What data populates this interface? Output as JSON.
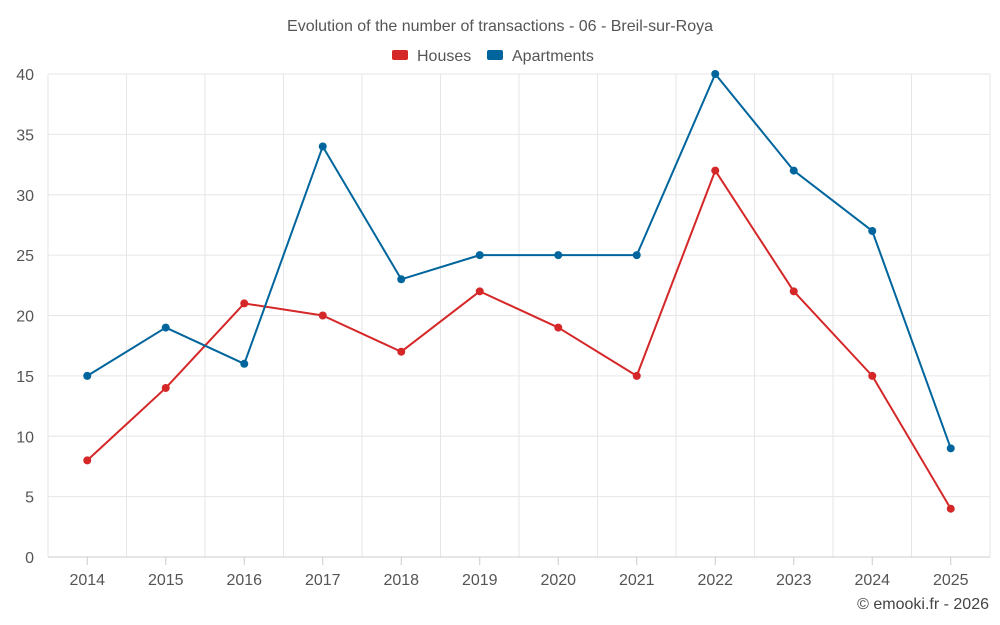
{
  "chart_data": {
    "type": "line",
    "title": "Evolution of the number of transactions - 06 - Breil-sur-Roya",
    "categories": [
      "2014",
      "2015",
      "2016",
      "2017",
      "2018",
      "2019",
      "2020",
      "2021",
      "2022",
      "2023",
      "2024",
      "2025"
    ],
    "series": [
      {
        "name": "Houses",
        "color": "#d62728",
        "values": [
          8,
          14,
          21,
          20,
          17,
          22,
          19,
          15,
          32,
          22,
          15,
          4
        ]
      },
      {
        "name": "Apartments",
        "color": "#00659c",
        "values": [
          15,
          19,
          16,
          34,
          23,
          25,
          25,
          25,
          40,
          32,
          27,
          9
        ]
      }
    ],
    "ylim": [
      0,
      40
    ],
    "yticks": [
      "0",
      "5",
      "10",
      "15",
      "20",
      "25",
      "30",
      "35",
      "40"
    ],
    "grid": true,
    "legend": "top-center",
    "credit": "© emooki.fr - 2026"
  }
}
